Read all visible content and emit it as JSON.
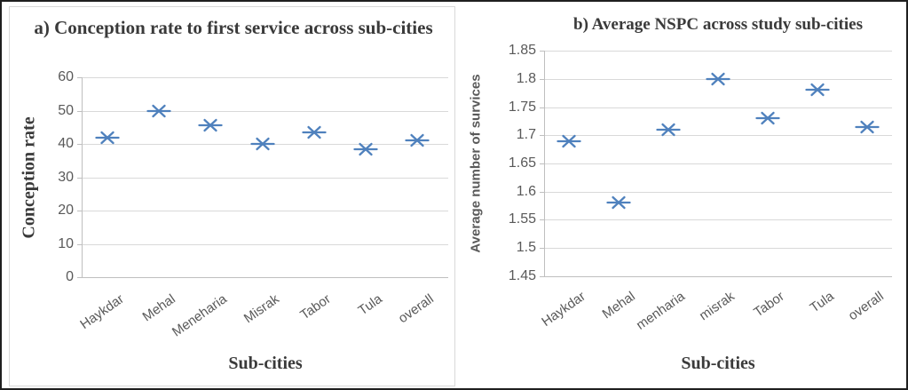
{
  "figure": {
    "background": "#ffffff",
    "outer_border_color": "#1f1f1f",
    "panel_border_color": "#d9d9d9",
    "gridline_color": "#d9d9d9",
    "axis_line_color": "#bfbfbf",
    "tick_text_color": "#595959",
    "title_text_color": "#3a3a3a"
  },
  "chart_data": [
    {
      "type": "scatter",
      "title": "a) Conception rate to first service across sub-cities",
      "xlabel": "Sub-cities",
      "ylabel": "Conception rate",
      "categories": [
        "Haykdar",
        "Mehal",
        "Meneharia",
        "Misrak",
        "Tabor",
        "Tula",
        "overall"
      ],
      "values": [
        42,
        50,
        45.5,
        40,
        43.5,
        38.5,
        41
      ],
      "ylim": [
        0,
        60
      ],
      "yticks": [
        0,
        10,
        20,
        30,
        40,
        50,
        60
      ],
      "ytick_labels": [
        "0",
        "10",
        "20",
        "30",
        "40",
        "50",
        "60"
      ],
      "grid": true,
      "legend": "none",
      "marker": "x-with-horizontal-dash",
      "marker_color": "#4f81bd"
    },
    {
      "type": "scatter",
      "title": "b) Average NSPC across study sub-cities",
      "xlabel": "Sub-cities",
      "ylabel": "Average number of survices",
      "categories": [
        "Haykdar",
        "Mehal",
        "menharia",
        "misrak",
        "Tabor",
        "Tula",
        "overall"
      ],
      "values": [
        1.69,
        1.58,
        1.71,
        1.8,
        1.73,
        1.78,
        1.715
      ],
      "ylim": [
        1.45,
        1.85
      ],
      "yticks": [
        1.45,
        1.5,
        1.55,
        1.6,
        1.65,
        1.7,
        1.75,
        1.8,
        1.85
      ],
      "ytick_labels": [
        "1.45",
        "1.5",
        "1.55",
        "1.6",
        "1.65",
        "1.7",
        "1.75",
        "1.8",
        "1.85"
      ],
      "grid": true,
      "legend": "none",
      "marker": "x-with-horizontal-dash",
      "marker_color": "#4f81bd"
    }
  ]
}
